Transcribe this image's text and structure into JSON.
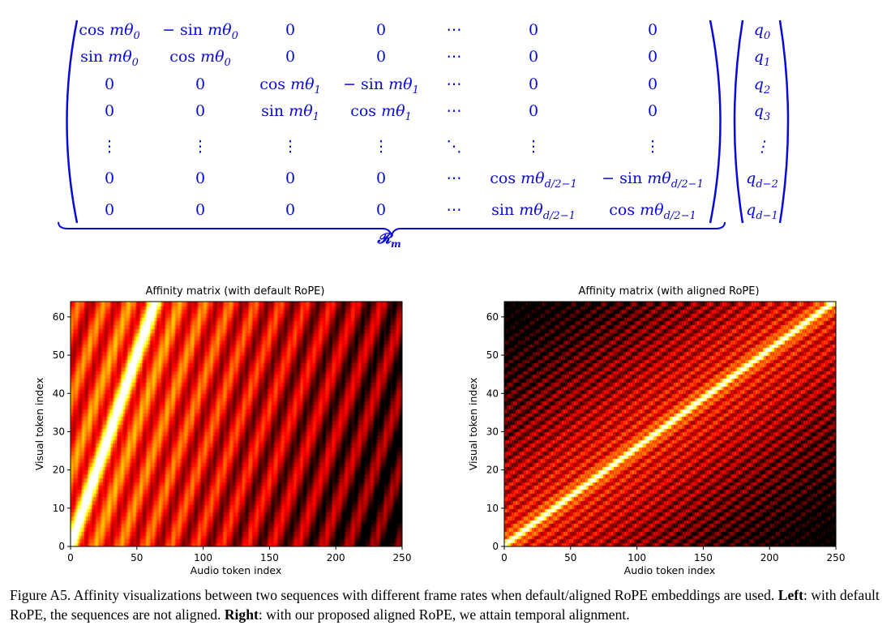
{
  "equation": {
    "matrix": [
      [
        {
          "fn": "cos",
          "sign": "",
          "sub": "0"
        },
        {
          "fn": "sin",
          "sign": "−",
          "sub": "0"
        },
        "0",
        "0",
        "⋯",
        "0",
        "0"
      ],
      [
        {
          "fn": "sin",
          "sign": "",
          "sub": "0"
        },
        {
          "fn": "cos",
          "sign": "",
          "sub": "0"
        },
        "0",
        "0",
        "⋯",
        "0",
        "0"
      ],
      [
        "0",
        "0",
        {
          "fn": "cos",
          "sign": "",
          "sub": "1"
        },
        {
          "fn": "sin",
          "sign": "−",
          "sub": "1"
        },
        "⋯",
        "0",
        "0"
      ],
      [
        "0",
        "0",
        {
          "fn": "sin",
          "sign": "",
          "sub": "1"
        },
        {
          "fn": "cos",
          "sign": "",
          "sub": "1"
        },
        "⋯",
        "0",
        "0"
      ],
      [
        "⋮",
        "⋮",
        "⋮",
        "⋮",
        "⋱",
        "⋮",
        "⋮"
      ],
      [
        "0",
        "0",
        "0",
        "0",
        "⋯",
        {
          "fn": "cos",
          "sign": "",
          "sub": "d/2−1"
        },
        {
          "fn": "sin",
          "sign": "−",
          "sub": "d/2−1"
        }
      ],
      [
        "0",
        "0",
        "0",
        "0",
        "⋯",
        {
          "fn": "sin",
          "sign": "",
          "sub": "d/2−1"
        },
        {
          "fn": "cos",
          "sign": "",
          "sub": "d/2−1"
        }
      ]
    ],
    "vector": [
      {
        "base": "q",
        "sub": "0"
      },
      {
        "base": "q",
        "sub": "1"
      },
      {
        "base": "q",
        "sub": "2"
      },
      {
        "base": "q",
        "sub": "3"
      },
      {
        "base": "⋮",
        "sub": ""
      },
      {
        "base": "q",
        "sub": "d−2"
      },
      {
        "base": "q",
        "sub": "d−1"
      }
    ],
    "underbrace_label": {
      "base": "𝓡",
      "sub": "m"
    },
    "color": "#0a0ad8"
  },
  "chart_data": [
    {
      "type": "heatmap",
      "title": "Affinity matrix (with default RoPE)",
      "xlabel": "Audio token index",
      "ylabel": "Visual token index",
      "xlim": [
        0,
        250
      ],
      "ylim": [
        0,
        64
      ],
      "xticks": [
        0,
        50,
        100,
        150,
        200,
        250
      ],
      "yticks": [
        0,
        10,
        20,
        30,
        40,
        50,
        60
      ],
      "colormap": "hot",
      "bright_diagonal": {
        "from": [
          0,
          0
        ],
        "to": [
          64,
          64
        ]
      }
    },
    {
      "type": "heatmap",
      "title": "Affinity matrix (with aligned RoPE)",
      "xlabel": "Audio token index",
      "ylabel": "Visual token index",
      "xlim": [
        0,
        250
      ],
      "ylim": [
        0,
        64
      ],
      "xticks": [
        0,
        50,
        100,
        150,
        200,
        250
      ],
      "yticks": [
        0,
        10,
        20,
        30,
        40,
        50,
        60
      ],
      "colormap": "hot",
      "bright_diagonal": {
        "from": [
          0,
          0
        ],
        "to": [
          250,
          64
        ]
      }
    }
  ],
  "caption": {
    "prefix": "Figure A5. Affinity visualizations between two sequences with different frame rates when default/aligned RoPE embeddings are used. ",
    "left_label": "Left",
    "middle": ": with default RoPE, the sequences are not aligned. ",
    "right_label": "Right",
    "suffix": ": with our proposed aligned RoPE, we attain temporal alignment."
  }
}
